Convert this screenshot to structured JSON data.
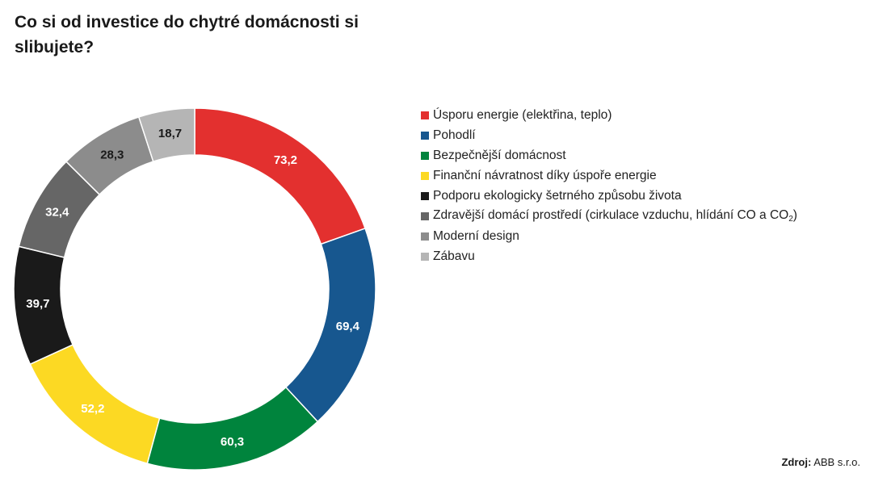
{
  "title": "Co si od investice do chytré domácnosti si slibujete?",
  "source": {
    "label": "Zdroj:",
    "value": "ABB s.r.o."
  },
  "chart_data": {
    "type": "pie",
    "variant": "donut",
    "title": "Co si od investice do chytré domácnosti si slibujete?",
    "legend_position": "right",
    "categories": [
      "Úsporu energie (elektřina, teplo)",
      "Pohodlí",
      "Bezpečnější domácnost",
      "Finanční návratnost díky úspoře energie",
      "Podporu ekologicky šetrného způsobu života",
      "Zdravější domácí prostředí (cirkulace vzduchu, hlídání CO a CO₂)",
      "Moderní design",
      "Zábavu"
    ],
    "values": [
      73.2,
      69.4,
      60.3,
      52.2,
      39.7,
      32.4,
      28.3,
      18.7
    ],
    "value_labels": [
      "73,2",
      "69,4",
      "60,3",
      "52,2",
      "39,7",
      "32,4",
      "28,3",
      "18,7"
    ],
    "colors": [
      "#e3302f",
      "#17578f",
      "#00843d",
      "#fcd923",
      "#1a1a1a",
      "#666666",
      "#8c8c8c",
      "#b5b5b5"
    ],
    "label_colors": [
      "#ffffff",
      "#ffffff",
      "#ffffff",
      "#ffffff",
      "#ffffff",
      "#ffffff",
      "#1a1a1a",
      "#1a1a1a"
    ]
  }
}
